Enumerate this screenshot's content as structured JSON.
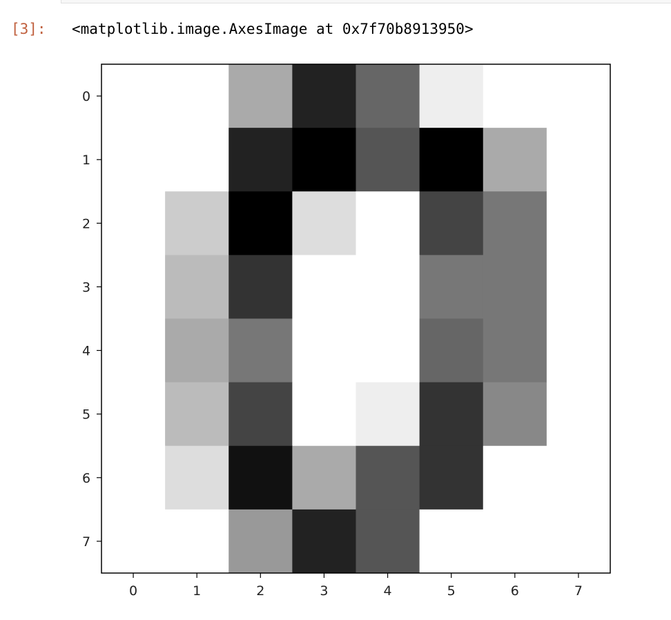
{
  "cell": {
    "prompt": "[3]:",
    "output_text": "<matplotlib.image.AxesImage at 0x7f70b8913950>"
  },
  "colors": {
    "prompt": "#c0603e",
    "axes": "#000000"
  },
  "chart_data": {
    "type": "heatmap",
    "colormap": "gray_r",
    "vmin": 0,
    "vmax": 15,
    "x_ticks": [
      "0",
      "1",
      "2",
      "3",
      "4",
      "5",
      "6",
      "7"
    ],
    "y_ticks": [
      "0",
      "1",
      "2",
      "3",
      "4",
      "5",
      "6",
      "7"
    ],
    "xlim": [
      -0.5,
      7.5
    ],
    "ylim": [
      7.5,
      -0.5
    ],
    "grid": false,
    "values": [
      [
        0,
        0,
        5,
        13,
        9,
        1,
        0,
        0
      ],
      [
        0,
        0,
        13,
        15,
        10,
        15,
        5,
        0
      ],
      [
        0,
        3,
        15,
        2,
        0,
        11,
        8,
        0
      ],
      [
        0,
        4,
        12,
        0,
        0,
        8,
        8,
        0
      ],
      [
        0,
        5,
        8,
        0,
        0,
        9,
        8,
        0
      ],
      [
        0,
        4,
        11,
        0,
        1,
        12,
        7,
        0
      ],
      [
        0,
        2,
        14,
        5,
        10,
        12,
        0,
        0
      ],
      [
        0,
        0,
        6,
        13,
        10,
        0,
        0,
        0
      ]
    ]
  }
}
